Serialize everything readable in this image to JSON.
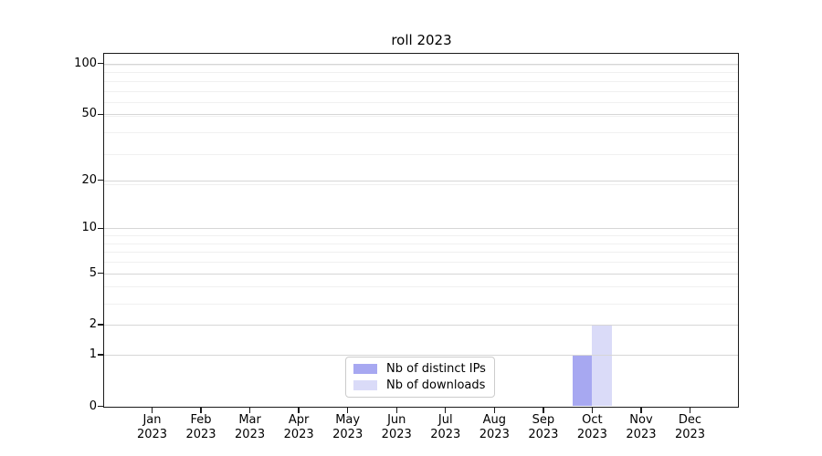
{
  "title": "roll 2023",
  "chart_data": {
    "type": "bar",
    "title": "roll 2023",
    "x_months": [
      "Jan",
      "Feb",
      "Mar",
      "Apr",
      "May",
      "Jun",
      "Jul",
      "Aug",
      "Sep",
      "Oct",
      "Nov",
      "Dec"
    ],
    "x_year": "2023",
    "yticks": [
      0,
      1,
      2,
      5,
      10,
      20,
      50,
      100
    ],
    "y_scale": "log10(value+1)",
    "ylim": [
      0,
      115
    ],
    "grid": "both",
    "series": [
      {
        "name": "Nb of distinct IPs",
        "color": "#a7a8f1",
        "values": [
          0,
          0,
          0,
          0,
          0,
          0,
          0,
          0,
          0,
          1,
          0,
          0
        ]
      },
      {
        "name": "Nb of downloads",
        "color": "#dadbf8",
        "values": [
          0,
          0,
          0,
          0,
          0,
          0,
          0,
          0,
          0,
          2,
          0,
          0
        ]
      }
    ],
    "legend_position": "lower center inside plot"
  },
  "colors": {
    "grid_major": "#d6d6d6",
    "grid_minor": "#f0f0f0",
    "axis": "#1a1a1a",
    "background": "#ffffff"
  }
}
